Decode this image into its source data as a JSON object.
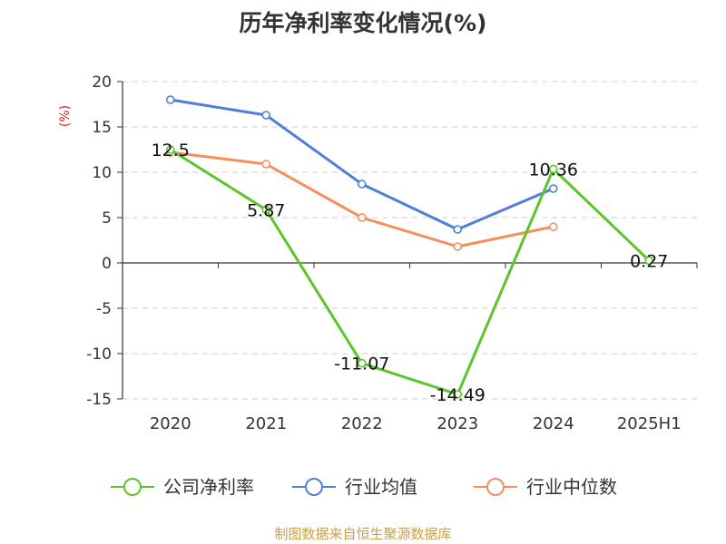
{
  "chart_data": {
    "type": "line",
    "title": "历年净利率变化情况(%)",
    "ylabel": "(%)",
    "categories": [
      "2020",
      "2021",
      "2022",
      "2023",
      "2024",
      "2025H1"
    ],
    "y_ticks": [
      "20",
      "15",
      "10",
      "5",
      "0",
      "-5",
      "-10",
      "-15"
    ],
    "ylim": [
      -15,
      20
    ],
    "grid": true,
    "legend_position": "bottom",
    "series": [
      {
        "name": "公司净利率",
        "color": "#5dc42b",
        "values": [
          12.5,
          5.87,
          -11.07,
          -14.49,
          10.36,
          0.27
        ],
        "labels": [
          "12.5",
          "5.87",
          "-11.07",
          "-14.49",
          "10.36",
          "0.27"
        ]
      },
      {
        "name": "行业均值",
        "color": "#4f7fd8",
        "values": [
          18.0,
          16.3,
          8.7,
          3.7,
          8.2,
          null
        ]
      },
      {
        "name": "行业中位数",
        "color": "#f58f5a",
        "values": [
          12.2,
          10.9,
          5.0,
          1.8,
          4.0,
          null
        ]
      }
    ]
  },
  "footer": {
    "source": "制图数据来自恒生聚源数据库"
  }
}
